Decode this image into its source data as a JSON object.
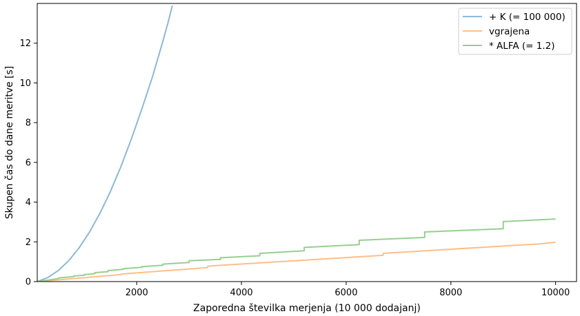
{
  "chart_data": {
    "type": "line",
    "xlabel": "Zaporedna številka merjenja (10 000 dodajanj)",
    "ylabel": "Skupen čas do dane meritve [s]",
    "xlim": [
      100,
      10400
    ],
    "ylim": [
      0,
      14
    ],
    "x_ticks": [
      2000,
      4000,
      6000,
      8000,
      10000
    ],
    "y_ticks": [
      0,
      2,
      4,
      6,
      8,
      10,
      12
    ],
    "grid": false,
    "legend_position": "top-right",
    "series": [
      {
        "name": "+ K (= 100 000)",
        "color": "#8bb8d8",
        "x": [
          100,
          300,
          500,
          700,
          900,
          1100,
          1300,
          1500,
          1700,
          1900,
          2100,
          2300,
          2500,
          2600,
          2680
        ],
        "y": [
          0.0,
          0.2,
          0.55,
          1.05,
          1.7,
          2.5,
          3.45,
          4.55,
          5.8,
          7.2,
          8.7,
          10.3,
          12.1,
          13.05,
          13.9
        ]
      },
      {
        "name": "vgrajena",
        "color": "#ffbe86",
        "x": [
          100,
          1700,
          1710,
          3350,
          3360,
          6700,
          6710,
          9700,
          10000
        ],
        "y": [
          0.0,
          0.35,
          0.38,
          0.7,
          0.78,
          1.32,
          1.42,
          1.9,
          1.98
        ]
      },
      {
        "name": "* ALFA (= 1.2)",
        "color": "#96cf8f",
        "x": [
          100,
          500,
          500,
          800,
          800,
          1000,
          1000,
          1200,
          1200,
          1450,
          1450,
          1750,
          1750,
          2100,
          2100,
          2500,
          2500,
          3000,
          3000,
          3600,
          3600,
          4350,
          4350,
          5200,
          5200,
          6250,
          6250,
          7500,
          7500,
          9000,
          9000,
          10000
        ],
        "y": [
          0.0,
          0.15,
          0.18,
          0.25,
          0.28,
          0.32,
          0.35,
          0.4,
          0.45,
          0.5,
          0.55,
          0.62,
          0.65,
          0.72,
          0.75,
          0.82,
          0.88,
          0.96,
          1.05,
          1.12,
          1.2,
          1.3,
          1.42,
          1.55,
          1.72,
          1.86,
          2.08,
          2.22,
          2.5,
          2.66,
          3.02,
          3.15
        ]
      }
    ]
  }
}
